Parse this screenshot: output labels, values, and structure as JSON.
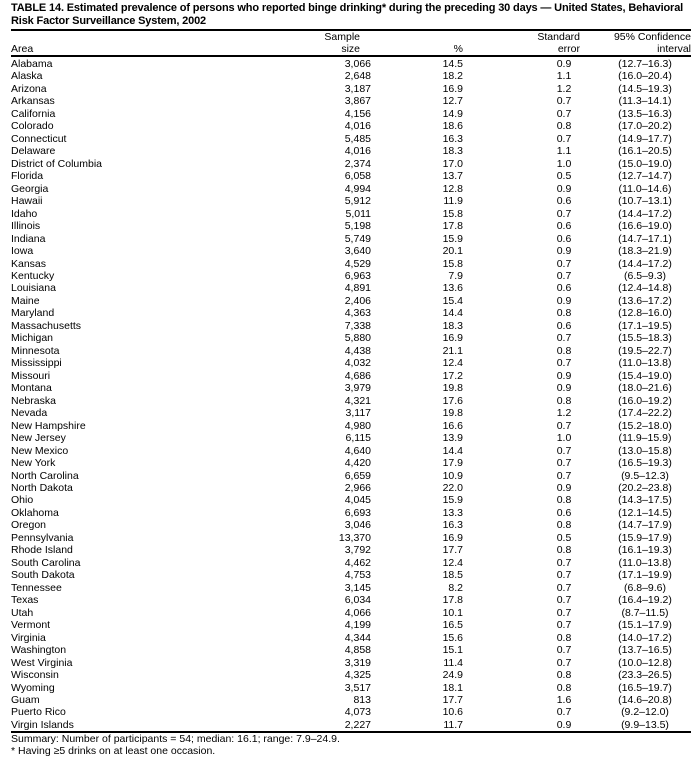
{
  "title": "TABLE 14. Estimated prevalence of persons who reported binge drinking* during the preceding 30 days — United States, Behavioral Risk Factor Surveillance System, 2002",
  "columns": {
    "area": "Area",
    "sample_size_line1": "Sample",
    "sample_size_line2": "size",
    "percent": "%",
    "se_line1": "Standard",
    "se_line2": "error",
    "ci_line1": "95% Confidence",
    "ci_line2": "interval"
  },
  "rows": [
    [
      "Alabama",
      "3,066",
      "14.5",
      "0.9",
      "(12.7–16.3)"
    ],
    [
      "Alaska",
      "2,648",
      "18.2",
      "1.1",
      "(16.0–20.4)"
    ],
    [
      "Arizona",
      "3,187",
      "16.9",
      "1.2",
      "(14.5–19.3)"
    ],
    [
      "Arkansas",
      "3,867",
      "12.7",
      "0.7",
      "(11.3–14.1)"
    ],
    [
      "California",
      "4,156",
      "14.9",
      "0.7",
      "(13.5–16.3)"
    ],
    [
      "Colorado",
      "4,016",
      "18.6",
      "0.8",
      "(17.0–20.2)"
    ],
    [
      "Connecticut",
      "5,485",
      "16.3",
      "0.7",
      "(14.9–17.7)"
    ],
    [
      "Delaware",
      "4,016",
      "18.3",
      "1.1",
      "(16.1–20.5)"
    ],
    [
      "District of Columbia",
      "2,374",
      "17.0",
      "1.0",
      "(15.0–19.0)"
    ],
    [
      "Florida",
      "6,058",
      "13.7",
      "0.5",
      "(12.7–14.7)"
    ],
    [
      "Georgia",
      "4,994",
      "12.8",
      "0.9",
      "(11.0–14.6)"
    ],
    [
      "Hawaii",
      "5,912",
      "11.9",
      "0.6",
      "(10.7–13.1)"
    ],
    [
      "Idaho",
      "5,011",
      "15.8",
      "0.7",
      "(14.4–17.2)"
    ],
    [
      "Illinois",
      "5,198",
      "17.8",
      "0.6",
      "(16.6–19.0)"
    ],
    [
      "Indiana",
      "5,749",
      "15.9",
      "0.6",
      "(14.7–17.1)"
    ],
    [
      "Iowa",
      "3,640",
      "20.1",
      "0.9",
      "(18.3–21.9)"
    ],
    [
      "Kansas",
      "4,529",
      "15.8",
      "0.7",
      "(14.4–17.2)"
    ],
    [
      "Kentucky",
      "6,963",
      "7.9",
      "0.7",
      "(6.5–9.3)"
    ],
    [
      "Louisiana",
      "4,891",
      "13.6",
      "0.6",
      "(12.4–14.8)"
    ],
    [
      "Maine",
      "2,406",
      "15.4",
      "0.9",
      "(13.6–17.2)"
    ],
    [
      "Maryland",
      "4,363",
      "14.4",
      "0.8",
      "(12.8–16.0)"
    ],
    [
      "Massachusetts",
      "7,338",
      "18.3",
      "0.6",
      "(17.1–19.5)"
    ],
    [
      "Michigan",
      "5,880",
      "16.9",
      "0.7",
      "(15.5–18.3)"
    ],
    [
      "Minnesota",
      "4,438",
      "21.1",
      "0.8",
      "(19.5–22.7)"
    ],
    [
      "Mississippi",
      "4,032",
      "12.4",
      "0.7",
      "(11.0–13.8)"
    ],
    [
      "Missouri",
      "4,686",
      "17.2",
      "0.9",
      "(15.4–19.0)"
    ],
    [
      "Montana",
      "3,979",
      "19.8",
      "0.9",
      "(18.0–21.6)"
    ],
    [
      "Nebraska",
      "4,321",
      "17.6",
      "0.8",
      "(16.0–19.2)"
    ],
    [
      "Nevada",
      "3,117",
      "19.8",
      "1.2",
      "(17.4–22.2)"
    ],
    [
      "New Hampshire",
      "4,980",
      "16.6",
      "0.7",
      "(15.2–18.0)"
    ],
    [
      "New Jersey",
      "6,115",
      "13.9",
      "1.0",
      "(11.9–15.9)"
    ],
    [
      "New Mexico",
      "4,640",
      "14.4",
      "0.7",
      "(13.0–15.8)"
    ],
    [
      "New York",
      "4,420",
      "17.9",
      "0.7",
      "(16.5–19.3)"
    ],
    [
      "North Carolina",
      "6,659",
      "10.9",
      "0.7",
      "(9.5–12.3)"
    ],
    [
      "North Dakota",
      "2,966",
      "22.0",
      "0.9",
      "(20.2–23.8)"
    ],
    [
      "Ohio",
      "4,045",
      "15.9",
      "0.8",
      "(14.3–17.5)"
    ],
    [
      "Oklahoma",
      "6,693",
      "13.3",
      "0.6",
      "(12.1–14.5)"
    ],
    [
      "Oregon",
      "3,046",
      "16.3",
      "0.8",
      "(14.7–17.9)"
    ],
    [
      "Pennsylvania",
      "13,370",
      "16.9",
      "0.5",
      "(15.9–17.9)"
    ],
    [
      "Rhode Island",
      "3,792",
      "17.7",
      "0.8",
      "(16.1–19.3)"
    ],
    [
      "South Carolina",
      "4,462",
      "12.4",
      "0.7",
      "(11.0–13.8)"
    ],
    [
      "South Dakota",
      "4,753",
      "18.5",
      "0.7",
      "(17.1–19.9)"
    ],
    [
      "Tennessee",
      "3,145",
      "8.2",
      "0.7",
      "(6.8–9.6)"
    ],
    [
      "Texas",
      "6,034",
      "17.8",
      "0.7",
      "(16.4–19.2)"
    ],
    [
      "Utah",
      "4,066",
      "10.1",
      "0.7",
      "(8.7–11.5)"
    ],
    [
      "Vermont",
      "4,199",
      "16.5",
      "0.7",
      "(15.1–17.9)"
    ],
    [
      "Virginia",
      "4,344",
      "15.6",
      "0.8",
      "(14.0–17.2)"
    ],
    [
      "Washington",
      "4,858",
      "15.1",
      "0.7",
      "(13.7–16.5)"
    ],
    [
      "West Virginia",
      "3,319",
      "11.4",
      "0.7",
      "(10.0–12.8)"
    ],
    [
      "Wisconsin",
      "4,325",
      "24.9",
      "0.8",
      "(23.3–26.5)"
    ],
    [
      "Wyoming",
      "3,517",
      "18.1",
      "0.8",
      "(16.5–19.7)"
    ],
    [
      "Guam",
      "813",
      "17.7",
      "1.6",
      "(14.6–20.8)"
    ],
    [
      "Puerto Rico",
      "4,073",
      "10.6",
      "0.7",
      "(9.2–12.0)"
    ],
    [
      "Virgin Islands",
      "2,227",
      "11.7",
      "0.9",
      "(9.9–13.5)"
    ]
  ],
  "summary": "Summary: Number of participants = 54; median: 16.1; range: 7.9–24.9.",
  "footnote": "* Having ≥5 drinks on at least one occasion."
}
